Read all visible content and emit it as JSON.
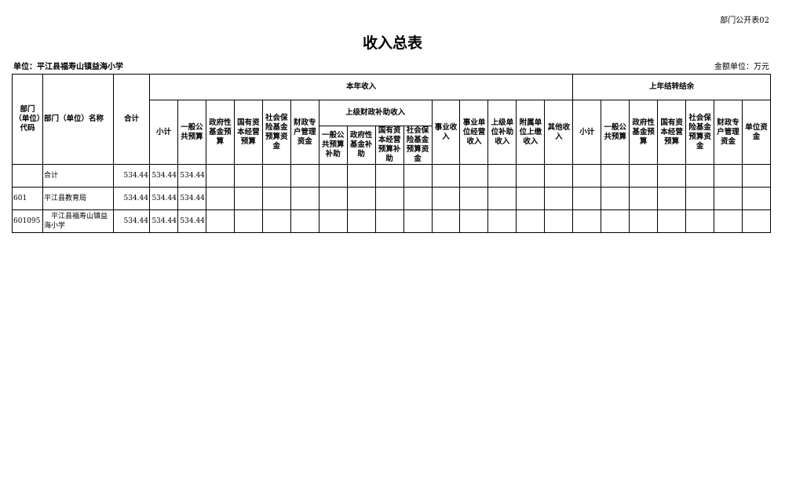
{
  "form_code": "部门公开表02",
  "title": "收入总表",
  "unit_label": "单位：平江县福寿山镇益海小学",
  "money_unit": "金额单位：万元",
  "headers": {
    "code": "部门（单位）代码",
    "name": "部门（单位）名称",
    "total": "合计",
    "this_year": "本年收入",
    "last_year": "上年结转结余",
    "subtotal": "小计",
    "general": "一般公共预算",
    "gov_fund": "政府性基金预算",
    "state_capital": "国有资本经营预算",
    "social_fund": "社会保险基金预算资金",
    "fiscal_special": "财政专户管理资金",
    "upper_subsidy": "上级财政补助收入",
    "us_general": "一般公共预算补助",
    "us_gov_fund": "政府性基金补助",
    "us_state_capital": "国有资本经营预算补助",
    "us_social": "社会保险基金预算资金",
    "business": "事业收入",
    "business_operation": "事业单位经营收入",
    "upper_unit_subsidy": "上级单位补助收入",
    "affiliated": "附属单位上缴收入",
    "other": "其他收入",
    "ly_subtotal": "小计",
    "ly_general": "一般公共预算",
    "ly_gov_fund": "政府性基金预算",
    "ly_state_capital": "国有资本经营预算",
    "ly_social": "社会保险基金预算资金",
    "ly_fiscal_special": "财政专户管理资金",
    "ly_unit_fund": "单位资金"
  },
  "rows": [
    {
      "code": "",
      "name": "合计",
      "total": "534.44",
      "subtotal": "534.44",
      "general": "534.44"
    },
    {
      "code": "601",
      "name": "平江县教育局",
      "total": "534.44",
      "subtotal": "534.44",
      "general": "534.44"
    },
    {
      "code": "601095",
      "name": "　平江县福寿山镇益海小学",
      "total": "534.44",
      "subtotal": "534.44",
      "general": "534.44"
    }
  ]
}
